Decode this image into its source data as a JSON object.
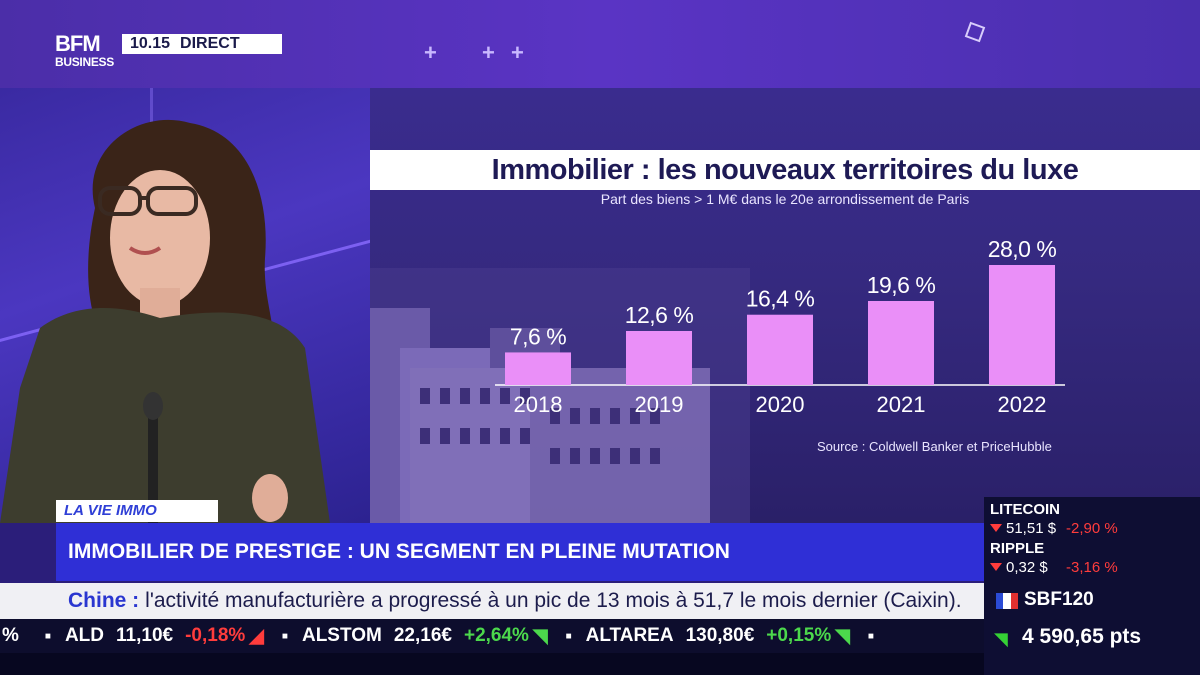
{
  "channel": {
    "logo_line1": "BFM",
    "logo_line2": "BUSINESS",
    "time": "10.15",
    "live": "DIRECT"
  },
  "chart_data": {
    "type": "bar",
    "title": "Immobilier : les nouveaux territoires du luxe",
    "subtitle": "Part des biens > 1 M€ dans le 20e arrondissement de Paris",
    "source": "Source : Coldwell Banker et PriceHubble",
    "categories": [
      "2018",
      "2019",
      "2020",
      "2021",
      "2022"
    ],
    "values": [
      7.6,
      12.6,
      16.4,
      19.6,
      28.0
    ],
    "value_labels": [
      "7,6 %",
      "12,6 %",
      "16,4 %",
      "19,6 %",
      "28,0 %"
    ],
    "ylim": [
      0,
      28
    ],
    "bar_color": "#ea8ff8",
    "grid": false
  },
  "lower_third": {
    "tag": "LA VIE IMMO",
    "headline": "IMMOBILIER DE PRESTIGE : UN SEGMENT EN PLEINE MUTATION"
  },
  "news_ticker": {
    "keyword": "Chine :",
    "text": "l'activité manufacturière a progressé à un pic de 13 mois à 51,7 le mois dernier (Caixin)."
  },
  "stock_ticker": [
    {
      "lead": "%",
      "name": "",
      "price": "",
      "change": "",
      "dir": "none"
    },
    {
      "name": "ALD",
      "price": "11,10€",
      "change": "-0,18%",
      "dir": "down"
    },
    {
      "name": "ALSTOM",
      "price": "22,16€",
      "change": "+2,64%",
      "dir": "up"
    },
    {
      "name": "ALTAREA",
      "price": "130,80€",
      "change": "+0,15%",
      "dir": "up"
    }
  ],
  "markets": [
    {
      "name": "LITECOIN",
      "price": "51,51 $",
      "change": "-2,90 %"
    },
    {
      "name": "RIPPLE",
      "price": "0,32 $",
      "change": "-3,16 %"
    }
  ],
  "index": {
    "name": "SBF120",
    "value": "4 590,65 pts"
  },
  "colors": {
    "accent_blue": "#2f2fd6",
    "bar_pink": "#ea8ff8",
    "down_red": "#ff3c3c",
    "up_green": "#4cd84c"
  }
}
